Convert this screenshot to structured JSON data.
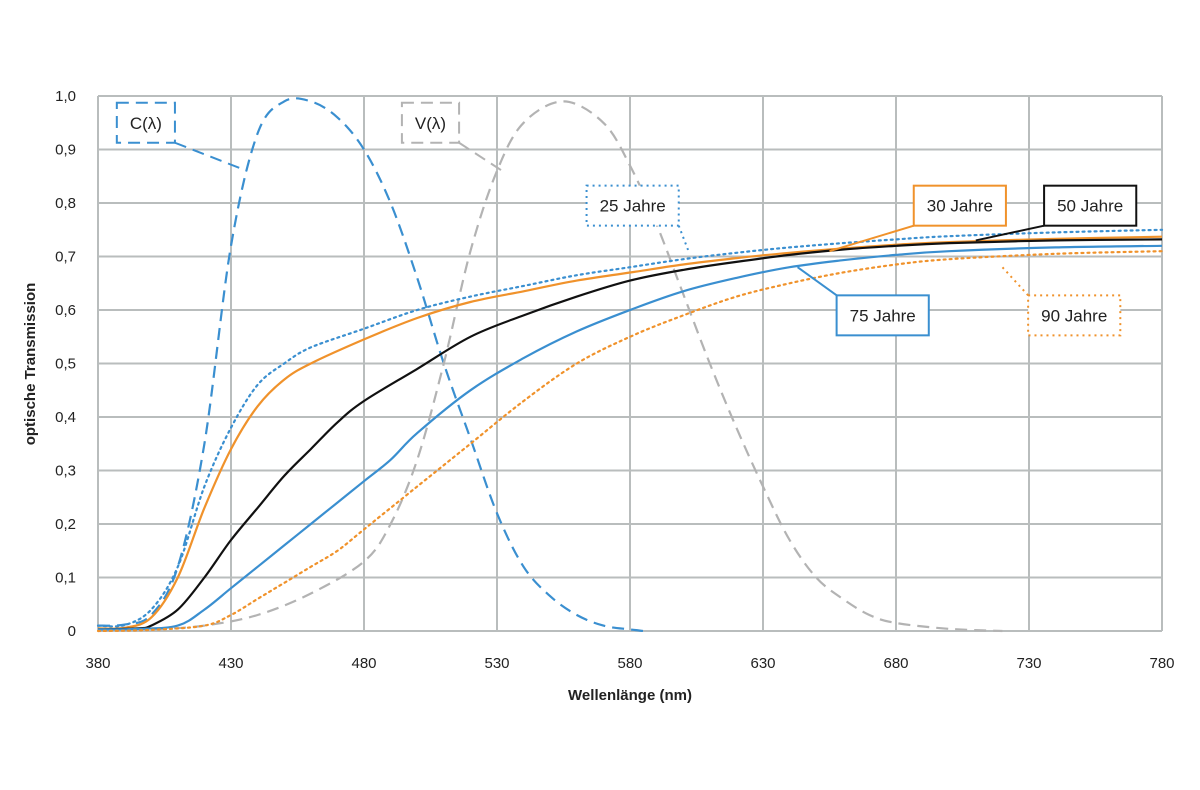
{
  "chart_data": {
    "type": "line",
    "xlabel": "Wellenlänge (nm)",
    "ylabel": "optische Transmission",
    "xlim": [
      380,
      780
    ],
    "ylim": [
      0,
      1.0
    ],
    "x_ticks": [
      380,
      430,
      480,
      530,
      580,
      630,
      680,
      730,
      780
    ],
    "x_tick_labels": [
      "380",
      "430",
      "480",
      "530",
      "580",
      "630",
      "680",
      "730",
      "780"
    ],
    "y_ticks": [
      0,
      0.1,
      0.2,
      0.3,
      0.4,
      0.5,
      0.6,
      0.7,
      0.8,
      0.9,
      1.0
    ],
    "y_tick_labels": [
      "0",
      "0,1",
      "0,2",
      "0,3",
      "0,4",
      "0,5",
      "0,6",
      "0,7",
      "0,8",
      "0,9",
      "1,0"
    ],
    "grid": true,
    "series": [
      {
        "name": "C(λ)",
        "color": "#3a8fd0",
        "style": "dashed",
        "label_pos": [
          398,
          0.95
        ],
        "anchor": [
          436,
          0.86
        ],
        "points": [
          [
            380,
            0.01
          ],
          [
            390,
            0.012
          ],
          [
            400,
            0.03
          ],
          [
            410,
            0.12
          ],
          [
            420,
            0.35
          ],
          [
            430,
            0.72
          ],
          [
            440,
            0.93
          ],
          [
            450,
            0.99
          ],
          [
            460,
            0.99
          ],
          [
            470,
            0.96
          ],
          [
            480,
            0.9
          ],
          [
            490,
            0.8
          ],
          [
            500,
            0.66
          ],
          [
            510,
            0.5
          ],
          [
            520,
            0.36
          ],
          [
            530,
            0.22
          ],
          [
            540,
            0.12
          ],
          [
            550,
            0.065
          ],
          [
            560,
            0.03
          ],
          [
            570,
            0.01
          ],
          [
            580,
            0.003
          ],
          [
            585,
            0
          ]
        ]
      },
      {
        "name": "V(λ)",
        "color": "#b3b3b3",
        "style": "dashed",
        "label_pos": [
          505,
          0.95
        ],
        "anchor": [
          532,
          0.86
        ],
        "points": [
          [
            380,
            0
          ],
          [
            400,
            0.003
          ],
          [
            420,
            0.01
          ],
          [
            440,
            0.03
          ],
          [
            460,
            0.07
          ],
          [
            480,
            0.13
          ],
          [
            490,
            0.2
          ],
          [
            500,
            0.32
          ],
          [
            510,
            0.5
          ],
          [
            520,
            0.71
          ],
          [
            530,
            0.86
          ],
          [
            540,
            0.95
          ],
          [
            555,
            0.99
          ],
          [
            570,
            0.95
          ],
          [
            580,
            0.87
          ],
          [
            590,
            0.76
          ],
          [
            600,
            0.63
          ],
          [
            610,
            0.5
          ],
          [
            620,
            0.38
          ],
          [
            630,
            0.27
          ],
          [
            640,
            0.17
          ],
          [
            650,
            0.1
          ],
          [
            660,
            0.06
          ],
          [
            670,
            0.03
          ],
          [
            680,
            0.015
          ],
          [
            700,
            0.004
          ],
          [
            720,
            0
          ]
        ]
      },
      {
        "name": "25 Jahre",
        "color": "#3a8fd0",
        "style": "dotted",
        "label_pos": [
          581,
          0.795
        ],
        "anchor": [
          602,
          0.71
        ],
        "points": [
          [
            380,
            0.01
          ],
          [
            390,
            0.011
          ],
          [
            400,
            0.04
          ],
          [
            410,
            0.12
          ],
          [
            420,
            0.27
          ],
          [
            430,
            0.38
          ],
          [
            440,
            0.46
          ],
          [
            450,
            0.5
          ],
          [
            460,
            0.53
          ],
          [
            480,
            0.565
          ],
          [
            500,
            0.6
          ],
          [
            520,
            0.625
          ],
          [
            540,
            0.645
          ],
          [
            560,
            0.665
          ],
          [
            580,
            0.68
          ],
          [
            600,
            0.695
          ],
          [
            620,
            0.707
          ],
          [
            640,
            0.717
          ],
          [
            660,
            0.725
          ],
          [
            680,
            0.732
          ],
          [
            700,
            0.738
          ],
          [
            740,
            0.745
          ],
          [
            780,
            0.75
          ]
        ]
      },
      {
        "name": "30 Jahre",
        "color": "#f0922b",
        "style": "solid",
        "label_pos": [
          704,
          0.795
        ],
        "anchor": [
          655,
          0.71
        ],
        "points": [
          [
            380,
            0.005
          ],
          [
            390,
            0.006
          ],
          [
            400,
            0.025
          ],
          [
            410,
            0.1
          ],
          [
            420,
            0.23
          ],
          [
            430,
            0.34
          ],
          [
            440,
            0.42
          ],
          [
            450,
            0.47
          ],
          [
            460,
            0.5
          ],
          [
            480,
            0.545
          ],
          [
            500,
            0.585
          ],
          [
            520,
            0.615
          ],
          [
            540,
            0.635
          ],
          [
            560,
            0.655
          ],
          [
            580,
            0.67
          ],
          [
            600,
            0.685
          ],
          [
            620,
            0.697
          ],
          [
            640,
            0.707
          ],
          [
            660,
            0.715
          ],
          [
            680,
            0.722
          ],
          [
            700,
            0.727
          ],
          [
            740,
            0.733
          ],
          [
            780,
            0.737
          ]
        ]
      },
      {
        "name": "50 Jahre",
        "color": "#111111",
        "style": "solid",
        "label_pos": [
          753,
          0.795
        ],
        "anchor": [
          710,
          0.73
        ],
        "points": [
          [
            380,
            0.003
          ],
          [
            395,
            0.005
          ],
          [
            400,
            0.01
          ],
          [
            410,
            0.04
          ],
          [
            420,
            0.1
          ],
          [
            430,
            0.17
          ],
          [
            440,
            0.23
          ],
          [
            450,
            0.29
          ],
          [
            460,
            0.34
          ],
          [
            470,
            0.39
          ],
          [
            480,
            0.43
          ],
          [
            500,
            0.49
          ],
          [
            520,
            0.55
          ],
          [
            540,
            0.59
          ],
          [
            560,
            0.625
          ],
          [
            580,
            0.655
          ],
          [
            600,
            0.675
          ],
          [
            620,
            0.69
          ],
          [
            640,
            0.703
          ],
          [
            660,
            0.713
          ],
          [
            680,
            0.72
          ],
          [
            700,
            0.725
          ],
          [
            740,
            0.73
          ],
          [
            780,
            0.732
          ]
        ]
      },
      {
        "name": "75 Jahre",
        "color": "#3a8fd0",
        "style": "solid",
        "label_pos": [
          675,
          0.59
        ],
        "anchor": [
          643,
          0.68
        ],
        "points": [
          [
            380,
            0.003
          ],
          [
            395,
            0.004
          ],
          [
            410,
            0.01
          ],
          [
            420,
            0.04
          ],
          [
            430,
            0.08
          ],
          [
            440,
            0.12
          ],
          [
            450,
            0.16
          ],
          [
            460,
            0.2
          ],
          [
            470,
            0.24
          ],
          [
            480,
            0.28
          ],
          [
            490,
            0.32
          ],
          [
            500,
            0.37
          ],
          [
            520,
            0.45
          ],
          [
            540,
            0.51
          ],
          [
            560,
            0.56
          ],
          [
            580,
            0.6
          ],
          [
            600,
            0.635
          ],
          [
            620,
            0.66
          ],
          [
            640,
            0.68
          ],
          [
            660,
            0.693
          ],
          [
            680,
            0.703
          ],
          [
            700,
            0.71
          ],
          [
            740,
            0.717
          ],
          [
            780,
            0.72
          ]
        ]
      },
      {
        "name": "90 Jahre",
        "color": "#f0922b",
        "style": "dotted",
        "label_pos": [
          747,
          0.59
        ],
        "anchor": [
          720,
          0.68
        ],
        "points": [
          [
            380,
            0
          ],
          [
            400,
            0.002
          ],
          [
            420,
            0.01
          ],
          [
            430,
            0.03
          ],
          [
            440,
            0.06
          ],
          [
            450,
            0.09
          ],
          [
            460,
            0.12
          ],
          [
            470,
            0.15
          ],
          [
            480,
            0.19
          ],
          [
            500,
            0.27
          ],
          [
            520,
            0.35
          ],
          [
            540,
            0.43
          ],
          [
            560,
            0.5
          ],
          [
            580,
            0.55
          ],
          [
            600,
            0.59
          ],
          [
            620,
            0.625
          ],
          [
            640,
            0.65
          ],
          [
            660,
            0.67
          ],
          [
            680,
            0.685
          ],
          [
            700,
            0.695
          ],
          [
            740,
            0.705
          ],
          [
            780,
            0.71
          ]
        ]
      }
    ]
  }
}
